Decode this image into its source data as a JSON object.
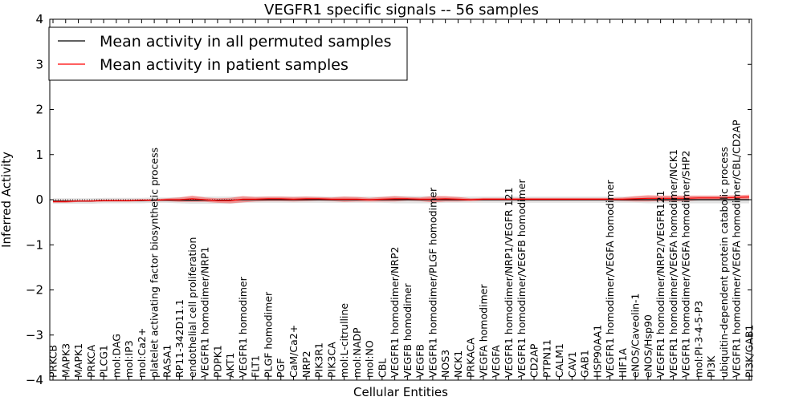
{
  "chart_data": {
    "type": "line",
    "title": "VEGFR1 specific signals -- 56 samples",
    "xlabel": "Cellular Entities",
    "ylabel": "Inferred Activity",
    "ylim": [
      -4,
      4
    ],
    "yticks": [
      -4,
      -3,
      -2,
      -1,
      0,
      1,
      2,
      3,
      4
    ],
    "ytick_labels": [
      "−4",
      "−3",
      "−2",
      "−1",
      "0",
      "1",
      "2",
      "3",
      "4"
    ],
    "grid": false,
    "legend_position": "top-left",
    "categories": [
      "PRKCB",
      "MAPK3",
      "MAPK1",
      "PRKCA",
      "PLCG1",
      "mol:DAG",
      "mol:IP3",
      "mol:Ca2+",
      "platelet activating factor biosynthetic process",
      "RASA1",
      "RP11-342D11.1",
      "endothelial cell proliferation",
      "VEGFR1 homodimer/NRP1",
      "PDPK1",
      "AKT1",
      "VEGFR1 homodimer",
      "FLT1",
      "PLGF homodimer",
      "PGF",
      "CaM/Ca2+",
      "NRP2",
      "PIK3R1",
      "PIK3CA",
      "mol:L-citrulline",
      "mol:NADP",
      "mol:NO",
      "CBL",
      "VEGFR1 homodimer/NRP2",
      "VEGFB homodimer",
      "VEGFB",
      "VEGFR1 homodimer/PLGF homodimer",
      "NOS3",
      "NCK1",
      "PRKACA",
      "VEGFA homodimer",
      "VEGFA",
      "VEGFR1 homodimer/NRP1/VEGFR 121",
      "VEGFR1 homodimer/VEGFB homodimer",
      "CD2AP",
      "PTPN11",
      "CALM1",
      "CAV1",
      "GAB1",
      "HSP90AA1",
      "VEGFR1 homodimer/VEGFA homodimer",
      "HIF1A",
      "eNOS/Caveolin-1",
      "eNOS/Hsp90",
      "VEGFR1 homodimer/NRP2/VEGFR121",
      "VEGFR1 homodimer/VEGFA homodimer/NCK1",
      "VEGFR1 homodimer/VEGFA homodimer/SHP2",
      "mol:PI-3-4-5-P3",
      "PI3K",
      "ubiquitin-dependent protein catabolic process",
      "VEGFR1 homodimer/VEGFA homodimer/CBL/CD2AP",
      "PI3K/GAB1"
    ],
    "series": [
      {
        "name": "Mean activity in all permuted samples",
        "color": "#000000",
        "values": [
          -0.03,
          -0.03,
          -0.03,
          -0.03,
          -0.02,
          -0.02,
          -0.02,
          -0.02,
          -0.01,
          -0.01,
          -0.01,
          -0.01,
          -0.01,
          -0.01,
          -0.01,
          0.0,
          0.0,
          0.0,
          0.0,
          0.0,
          0.0,
          0.0,
          0.0,
          0.0,
          0.0,
          0.0,
          0.0,
          0.0,
          0.0,
          0.0,
          0.0,
          0.0,
          0.0,
          0.0,
          0.0,
          0.0,
          0.0,
          0.0,
          0.0,
          0.0,
          0.0,
          0.0,
          0.0,
          0.0,
          0.0,
          0.0,
          0.0,
          0.0,
          0.0,
          0.0,
          0.0,
          0.0,
          0.0,
          0.0,
          0.0,
          0.0
        ],
        "band": [
          0.06,
          0.06,
          0.06,
          0.06,
          0.06,
          0.06,
          0.06,
          0.06,
          0.06,
          0.06,
          0.07,
          0.08,
          0.08,
          0.08,
          0.08,
          0.07,
          0.07,
          0.07,
          0.07,
          0.07,
          0.07,
          0.07,
          0.07,
          0.07,
          0.07,
          0.07,
          0.07,
          0.08,
          0.08,
          0.08,
          0.08,
          0.07,
          0.07,
          0.07,
          0.07,
          0.07,
          0.07,
          0.07,
          0.07,
          0.07,
          0.07,
          0.07,
          0.07,
          0.07,
          0.07,
          0.07,
          0.07,
          0.08,
          0.08,
          0.08,
          0.08,
          0.08,
          0.08,
          0.08,
          0.08,
          0.08
        ]
      },
      {
        "name": "Mean activity in patient samples",
        "color": "#ff0000",
        "values": [
          -0.04,
          -0.04,
          -0.03,
          -0.03,
          -0.02,
          -0.02,
          -0.02,
          -0.01,
          -0.01,
          0.0,
          0.0,
          0.02,
          0.0,
          -0.02,
          -0.02,
          0.01,
          0.01,
          0.02,
          0.02,
          0.01,
          0.02,
          0.02,
          0.01,
          0.01,
          0.01,
          0.0,
          0.01,
          0.02,
          0.02,
          0.01,
          0.01,
          0.02,
          0.01,
          0.0,
          0.01,
          0.01,
          0.01,
          0.01,
          0.01,
          0.01,
          0.01,
          0.01,
          0.01,
          0.01,
          0.01,
          0.01,
          0.02,
          0.03,
          0.03,
          0.03,
          0.03,
          0.04,
          0.04,
          0.04,
          0.05,
          0.06
        ],
        "band": [
          0.03,
          0.03,
          0.02,
          0.02,
          0.02,
          0.02,
          0.02,
          0.02,
          0.02,
          0.03,
          0.05,
          0.07,
          0.05,
          0.05,
          0.06,
          0.07,
          0.05,
          0.05,
          0.05,
          0.05,
          0.05,
          0.04,
          0.04,
          0.06,
          0.05,
          0.04,
          0.05,
          0.06,
          0.04,
          0.04,
          0.07,
          0.06,
          0.05,
          0.03,
          0.03,
          0.03,
          0.03,
          0.03,
          0.03,
          0.03,
          0.03,
          0.03,
          0.03,
          0.03,
          0.03,
          0.04,
          0.06,
          0.07,
          0.06,
          0.06,
          0.06,
          0.05,
          0.05,
          0.05,
          0.05,
          0.05
        ]
      }
    ]
  }
}
